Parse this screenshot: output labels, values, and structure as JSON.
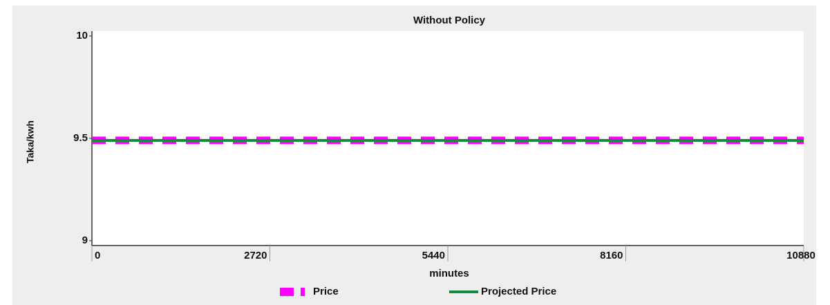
{
  "chart_data": {
    "type": "line",
    "title": "Without Policy",
    "x_label": "minutes",
    "y_label": "Taka/kwh",
    "x": [
      0,
      10880
    ],
    "series": [
      {
        "name": "Price",
        "color": "#ff00ff",
        "values": [
          9.49,
          9.49
        ],
        "style": "dashed"
      },
      {
        "name": "Projected Price",
        "color": "#138a3c",
        "values": [
          9.49,
          9.49
        ],
        "style": "solid"
      }
    ],
    "xlim": [
      0,
      10880
    ],
    "xticks": [
      0,
      2720,
      5440,
      8160,
      10880
    ],
    "ylim": [
      9,
      10
    ],
    "yticks": [
      9,
      9.5,
      10
    ]
  }
}
